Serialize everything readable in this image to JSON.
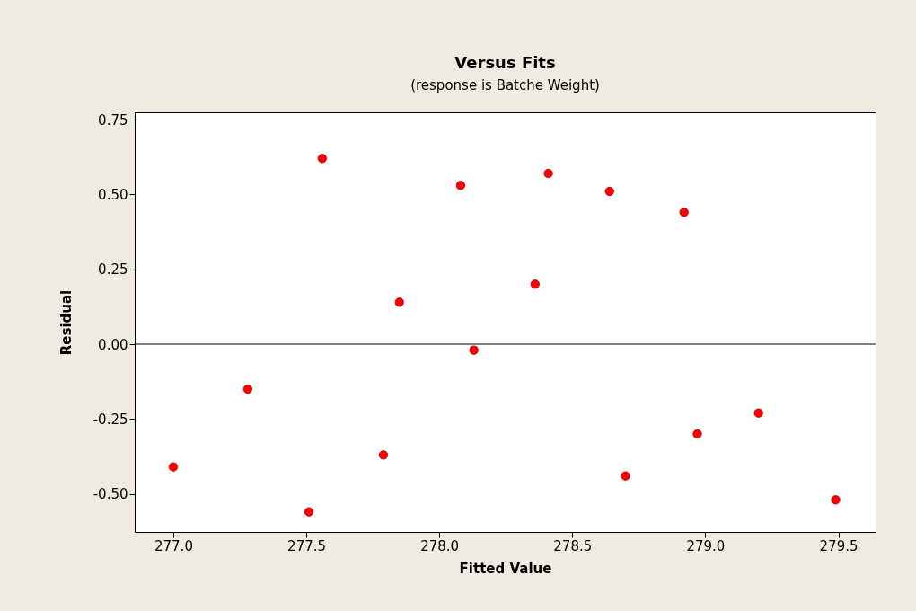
{
  "chart_data": {
    "type": "scatter",
    "title": "Versus Fits",
    "subtitle": "(response is Batche Weight)",
    "xlabel": "Fitted Value",
    "ylabel": "Residual",
    "x": [
      277.0,
      277.28,
      277.51,
      277.56,
      277.79,
      277.85,
      278.08,
      278.13,
      278.36,
      278.41,
      278.64,
      278.7,
      278.92,
      278.97,
      279.2,
      279.49
    ],
    "series": [
      {
        "color": "#ff0000",
        "values": [
          -0.41,
          -0.15,
          -0.56,
          0.62,
          -0.37,
          0.14,
          0.53,
          -0.02,
          0.2,
          0.57,
          0.51,
          -0.44,
          0.44,
          -0.3,
          -0.23,
          -0.52
        ]
      }
    ],
    "xlim": [
      276.855,
      279.64
    ],
    "ylim": [
      -0.627,
      0.774
    ],
    "xticks": [
      {
        "value": 277,
        "label": "277.0"
      },
      {
        "value": 277.5,
        "label": "277.5"
      },
      {
        "value": 278,
        "label": "278.0"
      },
      {
        "value": 278.5,
        "label": "278.5"
      },
      {
        "value": 279,
        "label": "279.0"
      },
      {
        "value": 279.5,
        "label": "279.5"
      }
    ],
    "yticks": [
      {
        "value": -0.5,
        "label": "-0.50"
      },
      {
        "value": -0.25,
        "label": "-0.25"
      },
      {
        "value": 0,
        "label": "0.00"
      },
      {
        "value": 0.25,
        "label": "0.25"
      },
      {
        "value": 0.5,
        "label": "0.50"
      },
      {
        "value": 0.75,
        "label": "0.75"
      }
    ],
    "ref_lines": [
      {
        "axis": "y",
        "value": 0,
        "color": "#000000"
      }
    ],
    "grid": false,
    "marker": "circle"
  }
}
